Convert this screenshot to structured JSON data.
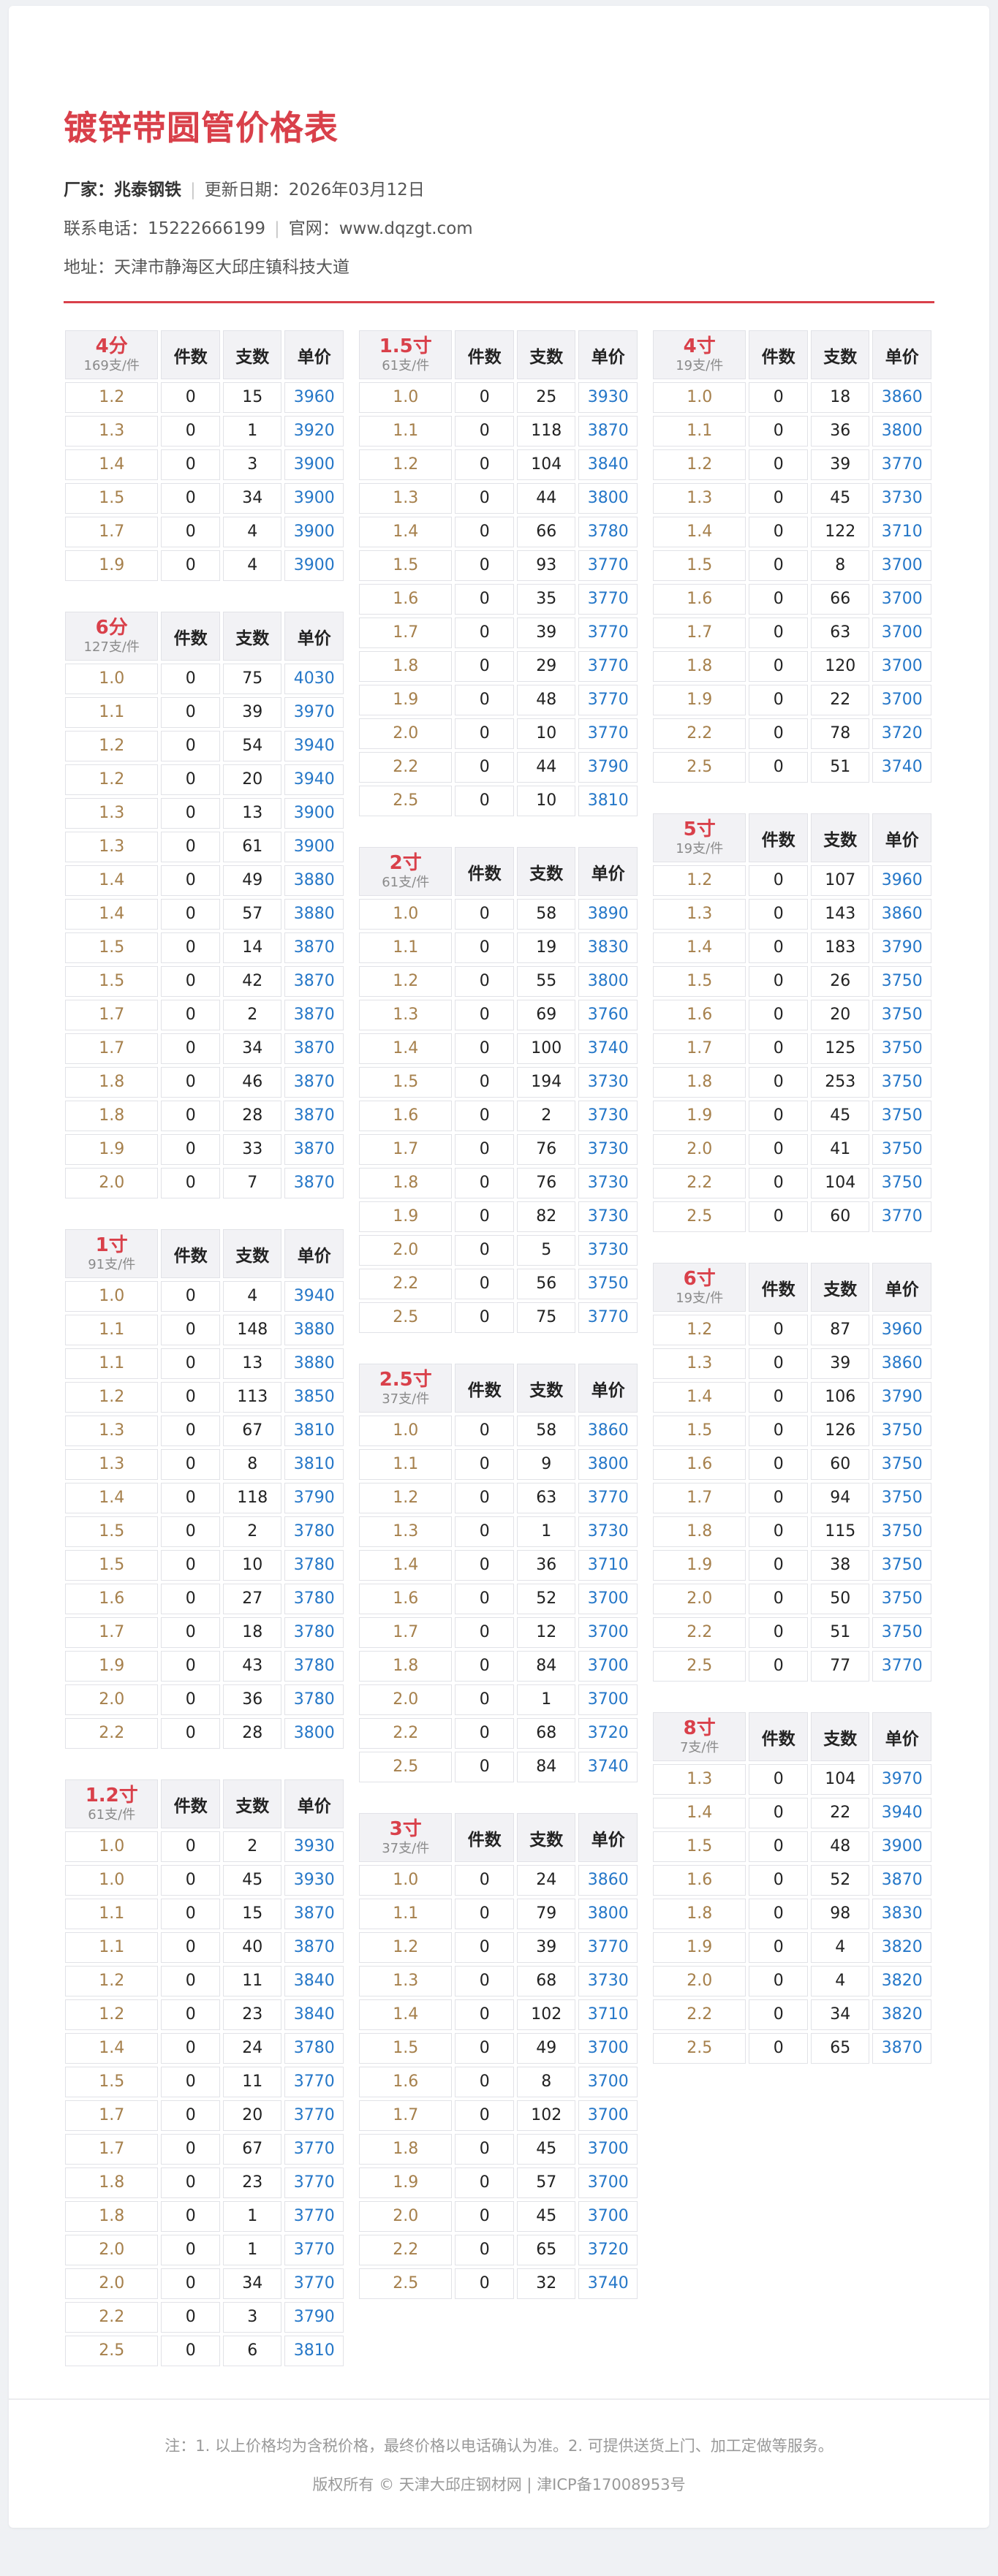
{
  "header": {
    "title": "镀锌带圆管价格表",
    "manufacturer_label": "厂家：",
    "manufacturer": "兆泰钢铁",
    "separator": "|",
    "update_label": "更新日期：",
    "update_date": "2026年03月12日",
    "phone_label": "联系电话：",
    "phone": "15222666199",
    "website_label": "官网：",
    "website": "www.dqzgt.com",
    "address_label": "地址：",
    "address": "天津市静海区大邱庄镇科技大道"
  },
  "table_headers": [
    "件数",
    "支数",
    "单价"
  ],
  "layout": {
    "columns": [
      [
        0,
        1,
        2,
        3
      ],
      [
        4,
        5,
        6,
        7
      ],
      [
        8,
        9,
        10,
        11
      ]
    ]
  },
  "tables": [
    {
      "name": "4分",
      "unit": "169支/件",
      "rows": [
        [
          "1.2",
          0,
          15,
          3960
        ],
        [
          "1.3",
          0,
          1,
          3920
        ],
        [
          "1.4",
          0,
          3,
          3900
        ],
        [
          "1.5",
          0,
          34,
          3900
        ],
        [
          "1.7",
          0,
          4,
          3900
        ],
        [
          "1.9",
          0,
          4,
          3900
        ]
      ]
    },
    {
      "name": "6分",
      "unit": "127支/件",
      "rows": [
        [
          "1.0",
          0,
          75,
          4030
        ],
        [
          "1.1",
          0,
          39,
          3970
        ],
        [
          "1.2",
          0,
          54,
          3940
        ],
        [
          "1.2",
          0,
          20,
          3940
        ],
        [
          "1.3",
          0,
          13,
          3900
        ],
        [
          "1.3",
          0,
          61,
          3900
        ],
        [
          "1.4",
          0,
          49,
          3880
        ],
        [
          "1.4",
          0,
          57,
          3880
        ],
        [
          "1.5",
          0,
          14,
          3870
        ],
        [
          "1.5",
          0,
          42,
          3870
        ],
        [
          "1.7",
          0,
          2,
          3870
        ],
        [
          "1.7",
          0,
          34,
          3870
        ],
        [
          "1.8",
          0,
          46,
          3870
        ],
        [
          "1.8",
          0,
          28,
          3870
        ],
        [
          "1.9",
          0,
          33,
          3870
        ],
        [
          "2.0",
          0,
          7,
          3870
        ]
      ]
    },
    {
      "name": "1寸",
      "unit": "91支/件",
      "rows": [
        [
          "1.0",
          0,
          4,
          3940
        ],
        [
          "1.1",
          0,
          148,
          3880
        ],
        [
          "1.1",
          0,
          13,
          3880
        ],
        [
          "1.2",
          0,
          113,
          3850
        ],
        [
          "1.3",
          0,
          67,
          3810
        ],
        [
          "1.3",
          0,
          8,
          3810
        ],
        [
          "1.4",
          0,
          118,
          3790
        ],
        [
          "1.5",
          0,
          2,
          3780
        ],
        [
          "1.5",
          0,
          10,
          3780
        ],
        [
          "1.6",
          0,
          27,
          3780
        ],
        [
          "1.7",
          0,
          18,
          3780
        ],
        [
          "1.9",
          0,
          43,
          3780
        ],
        [
          "2.0",
          0,
          36,
          3780
        ],
        [
          "2.2",
          0,
          28,
          3800
        ]
      ]
    },
    {
      "name": "1.2寸",
      "unit": "61支/件",
      "rows": [
        [
          "1.0",
          0,
          2,
          3930
        ],
        [
          "1.0",
          0,
          45,
          3930
        ],
        [
          "1.1",
          0,
          15,
          3870
        ],
        [
          "1.1",
          0,
          40,
          3870
        ],
        [
          "1.2",
          0,
          11,
          3840
        ],
        [
          "1.2",
          0,
          23,
          3840
        ],
        [
          "1.4",
          0,
          24,
          3780
        ],
        [
          "1.5",
          0,
          11,
          3770
        ],
        [
          "1.7",
          0,
          20,
          3770
        ],
        [
          "1.7",
          0,
          67,
          3770
        ],
        [
          "1.8",
          0,
          23,
          3770
        ],
        [
          "1.8",
          0,
          1,
          3770
        ],
        [
          "2.0",
          0,
          1,
          3770
        ],
        [
          "2.0",
          0,
          34,
          3770
        ],
        [
          "2.2",
          0,
          3,
          3790
        ],
        [
          "2.5",
          0,
          6,
          3810
        ]
      ]
    },
    {
      "name": "1.5寸",
      "unit": "61支/件",
      "rows": [
        [
          "1.0",
          0,
          25,
          3930
        ],
        [
          "1.1",
          0,
          118,
          3870
        ],
        [
          "1.2",
          0,
          104,
          3840
        ],
        [
          "1.3",
          0,
          44,
          3800
        ],
        [
          "1.4",
          0,
          66,
          3780
        ],
        [
          "1.5",
          0,
          93,
          3770
        ],
        [
          "1.6",
          0,
          35,
          3770
        ],
        [
          "1.7",
          0,
          39,
          3770
        ],
        [
          "1.8",
          0,
          29,
          3770
        ],
        [
          "1.9",
          0,
          48,
          3770
        ],
        [
          "2.0",
          0,
          10,
          3770
        ],
        [
          "2.2",
          0,
          44,
          3790
        ],
        [
          "2.5",
          0,
          10,
          3810
        ]
      ]
    },
    {
      "name": "2寸",
      "unit": "61支/件",
      "rows": [
        [
          "1.0",
          0,
          58,
          3890
        ],
        [
          "1.1",
          0,
          19,
          3830
        ],
        [
          "1.2",
          0,
          55,
          3800
        ],
        [
          "1.3",
          0,
          69,
          3760
        ],
        [
          "1.4",
          0,
          100,
          3740
        ],
        [
          "1.5",
          0,
          194,
          3730
        ],
        [
          "1.6",
          0,
          2,
          3730
        ],
        [
          "1.7",
          0,
          76,
          3730
        ],
        [
          "1.8",
          0,
          76,
          3730
        ],
        [
          "1.9",
          0,
          82,
          3730
        ],
        [
          "2.0",
          0,
          5,
          3730
        ],
        [
          "2.2",
          0,
          56,
          3750
        ],
        [
          "2.5",
          0,
          75,
          3770
        ]
      ]
    },
    {
      "name": "2.5寸",
      "unit": "37支/件",
      "rows": [
        [
          "1.0",
          0,
          58,
          3860
        ],
        [
          "1.1",
          0,
          9,
          3800
        ],
        [
          "1.2",
          0,
          63,
          3770
        ],
        [
          "1.3",
          0,
          1,
          3730
        ],
        [
          "1.4",
          0,
          36,
          3710
        ],
        [
          "1.6",
          0,
          52,
          3700
        ],
        [
          "1.7",
          0,
          12,
          3700
        ],
        [
          "1.8",
          0,
          84,
          3700
        ],
        [
          "2.0",
          0,
          1,
          3700
        ],
        [
          "2.2",
          0,
          68,
          3720
        ],
        [
          "2.5",
          0,
          84,
          3740
        ]
      ]
    },
    {
      "name": "3寸",
      "unit": "37支/件",
      "rows": [
        [
          "1.0",
          0,
          24,
          3860
        ],
        [
          "1.1",
          0,
          79,
          3800
        ],
        [
          "1.2",
          0,
          39,
          3770
        ],
        [
          "1.3",
          0,
          68,
          3730
        ],
        [
          "1.4",
          0,
          102,
          3710
        ],
        [
          "1.5",
          0,
          49,
          3700
        ],
        [
          "1.6",
          0,
          8,
          3700
        ],
        [
          "1.7",
          0,
          102,
          3700
        ],
        [
          "1.8",
          0,
          45,
          3700
        ],
        [
          "1.9",
          0,
          57,
          3700
        ],
        [
          "2.0",
          0,
          45,
          3700
        ],
        [
          "2.2",
          0,
          65,
          3720
        ],
        [
          "2.5",
          0,
          32,
          3740
        ]
      ]
    },
    {
      "name": "4寸",
      "unit": "19支/件",
      "rows": [
        [
          "1.0",
          0,
          18,
          3860
        ],
        [
          "1.1",
          0,
          36,
          3800
        ],
        [
          "1.2",
          0,
          39,
          3770
        ],
        [
          "1.3",
          0,
          45,
          3730
        ],
        [
          "1.4",
          0,
          122,
          3710
        ],
        [
          "1.5",
          0,
          8,
          3700
        ],
        [
          "1.6",
          0,
          66,
          3700
        ],
        [
          "1.7",
          0,
          63,
          3700
        ],
        [
          "1.8",
          0,
          120,
          3700
        ],
        [
          "1.9",
          0,
          22,
          3700
        ],
        [
          "2.2",
          0,
          78,
          3720
        ],
        [
          "2.5",
          0,
          51,
          3740
        ]
      ]
    },
    {
      "name": "5寸",
      "unit": "19支/件",
      "rows": [
        [
          "1.2",
          0,
          107,
          3960
        ],
        [
          "1.3",
          0,
          143,
          3860
        ],
        [
          "1.4",
          0,
          183,
          3790
        ],
        [
          "1.5",
          0,
          26,
          3750
        ],
        [
          "1.6",
          0,
          20,
          3750
        ],
        [
          "1.7",
          0,
          125,
          3750
        ],
        [
          "1.8",
          0,
          253,
          3750
        ],
        [
          "1.9",
          0,
          45,
          3750
        ],
        [
          "2.0",
          0,
          41,
          3750
        ],
        [
          "2.2",
          0,
          104,
          3750
        ],
        [
          "2.5",
          0,
          60,
          3770
        ]
      ]
    },
    {
      "name": "6寸",
      "unit": "19支/件",
      "rows": [
        [
          "1.2",
          0,
          87,
          3960
        ],
        [
          "1.3",
          0,
          39,
          3860
        ],
        [
          "1.4",
          0,
          106,
          3790
        ],
        [
          "1.5",
          0,
          126,
          3750
        ],
        [
          "1.6",
          0,
          60,
          3750
        ],
        [
          "1.7",
          0,
          94,
          3750
        ],
        [
          "1.8",
          0,
          115,
          3750
        ],
        [
          "1.9",
          0,
          38,
          3750
        ],
        [
          "2.0",
          0,
          50,
          3750
        ],
        [
          "2.2",
          0,
          51,
          3750
        ],
        [
          "2.5",
          0,
          77,
          3770
        ]
      ]
    },
    {
      "name": "8寸",
      "unit": "7支/件",
      "rows": [
        [
          "1.3",
          0,
          104,
          3970
        ],
        [
          "1.4",
          0,
          22,
          3940
        ],
        [
          "1.5",
          0,
          48,
          3900
        ],
        [
          "1.6",
          0,
          52,
          3870
        ],
        [
          "1.8",
          0,
          98,
          3830
        ],
        [
          "1.9",
          0,
          4,
          3820
        ],
        [
          "2.0",
          0,
          4,
          3820
        ],
        [
          "2.2",
          0,
          34,
          3820
        ],
        [
          "2.5",
          0,
          65,
          3870
        ]
      ]
    }
  ],
  "footer": {
    "note": "注：1. 以上价格均为含税价格，最终价格以电话确认为准。2. 可提供送货上门、加工定做等服务。",
    "copyright": "版权所有 © 天津大邱庄钢材网 | 津ICP备17008953号"
  },
  "colors": {
    "accent_red": "#d9404a",
    "price_blue": "#2577c8",
    "size_brown": "#a6804c",
    "header_bg": "#f2f2f5",
    "cell_border": "#e1e2e7",
    "page_bg": "#eff1f4"
  }
}
